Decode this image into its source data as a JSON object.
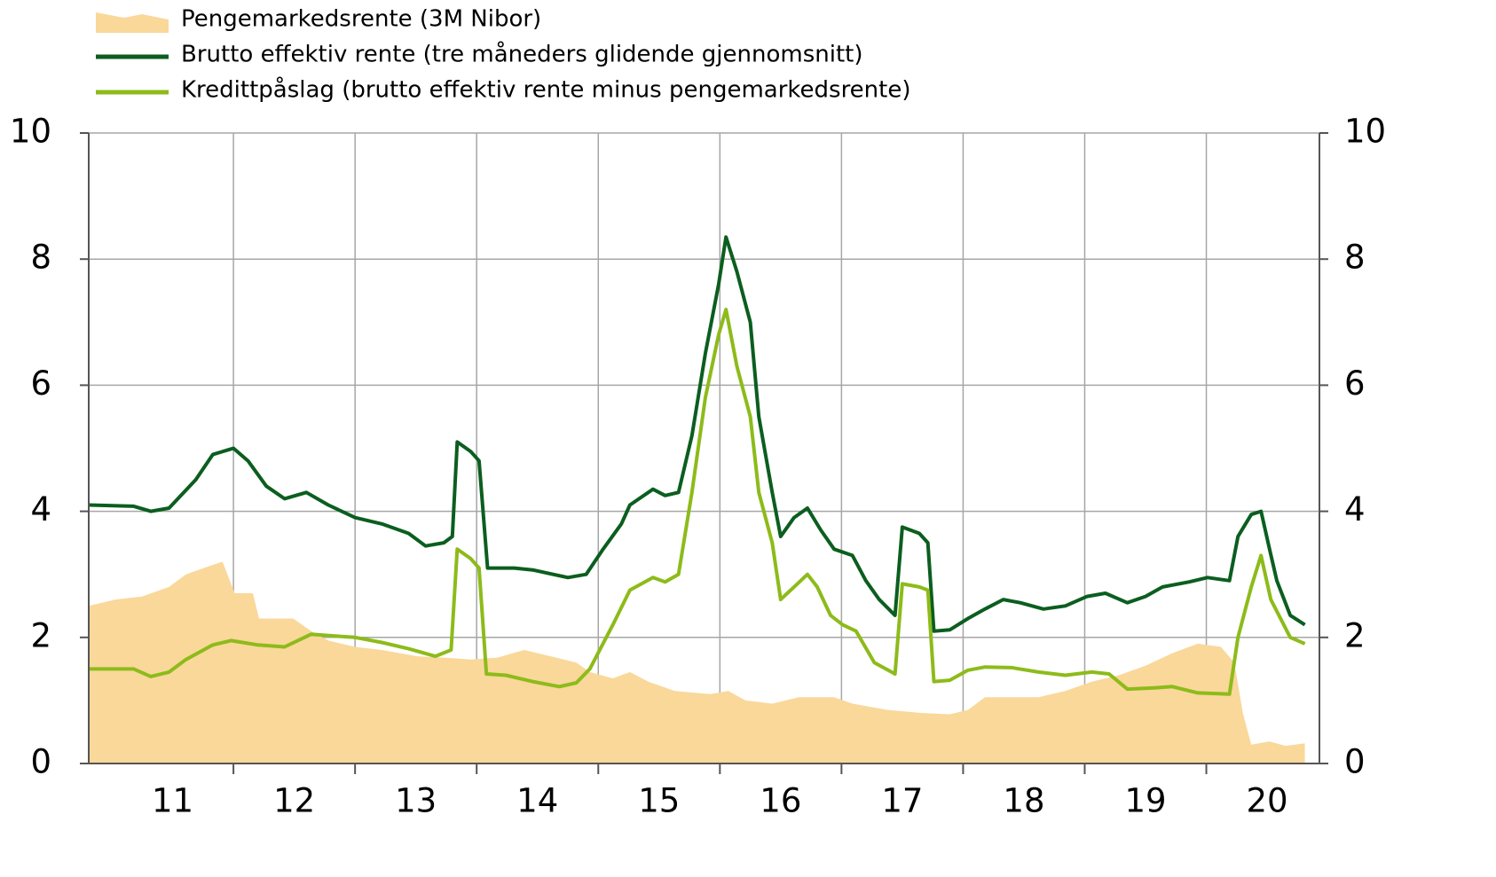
{
  "chart_data": {
    "type": "line",
    "xlim": [
      10.81,
      20.93
    ],
    "xticks": [
      {
        "value": 11.5,
        "label": "11"
      },
      {
        "value": 12.5,
        "label": "12"
      },
      {
        "value": 13.5,
        "label": "13"
      },
      {
        "value": 14.5,
        "label": "14"
      },
      {
        "value": 15.5,
        "label": "15"
      },
      {
        "value": 16.5,
        "label": "16"
      },
      {
        "value": 17.5,
        "label": "17"
      },
      {
        "value": 18.5,
        "label": "18"
      },
      {
        "value": 19.5,
        "label": "19"
      },
      {
        "value": 20.5,
        "label": "20"
      }
    ],
    "ylim": [
      0,
      10
    ],
    "yticks": [
      0,
      2,
      4,
      6,
      8,
      10
    ],
    "y2lim": [
      0,
      10
    ],
    "y2ticks": [
      0,
      2,
      4,
      6,
      8,
      10
    ],
    "grid": true,
    "series": [
      {
        "name": "Pengemarkedsrente (3M Nibor)",
        "kind": "area",
        "color": "#f9d89a",
        "x": [
          10.81,
          11.03,
          11.25,
          11.47,
          11.61,
          11.83,
          11.91,
          12.01,
          12.16,
          12.21,
          12.49,
          12.64,
          12.78,
          13.0,
          13.22,
          13.51,
          13.73,
          13.95,
          14.17,
          14.39,
          14.61,
          14.82,
          14.93,
          15.12,
          15.26,
          15.41,
          15.63,
          15.92,
          16.07,
          16.21,
          16.43,
          16.65,
          16.94,
          17.09,
          17.38,
          17.67,
          17.89,
          18.04,
          18.18,
          18.4,
          18.62,
          18.84,
          19.06,
          19.28,
          19.5,
          19.72,
          19.93,
          20.12,
          20.23,
          20.3,
          20.37,
          20.52,
          20.65,
          20.81
        ],
        "values": [
          2.5,
          2.6,
          2.65,
          2.8,
          3.0,
          3.15,
          3.2,
          2.7,
          2.7,
          2.3,
          2.3,
          2.1,
          1.95,
          1.85,
          1.8,
          1.7,
          1.68,
          1.65,
          1.68,
          1.8,
          1.7,
          1.6,
          1.45,
          1.35,
          1.45,
          1.3,
          1.15,
          1.1,
          1.15,
          1.0,
          0.95,
          1.05,
          1.05,
          0.95,
          0.85,
          0.8,
          0.78,
          0.85,
          1.05,
          1.05,
          1.05,
          1.15,
          1.3,
          1.4,
          1.55,
          1.75,
          1.9,
          1.85,
          1.6,
          0.8,
          0.3,
          0.35,
          0.28,
          0.32
        ]
      },
      {
        "name": "Brutto effektiv rente (tre måneders glidende gjennomsnitt)",
        "kind": "line",
        "color": "#0b5e1f",
        "x": [
          10.81,
          11.18,
          11.32,
          11.47,
          11.69,
          11.83,
          12.0,
          12.12,
          12.27,
          12.42,
          12.6,
          12.78,
          13.0,
          13.22,
          13.44,
          13.58,
          13.73,
          13.8,
          13.84,
          13.95,
          14.02,
          14.09,
          14.31,
          14.46,
          14.75,
          14.9,
          15.04,
          15.19,
          15.26,
          15.45,
          15.55,
          15.66,
          15.77,
          15.88,
          15.99,
          16.05,
          16.14,
          16.25,
          16.32,
          16.43,
          16.5,
          16.61,
          16.72,
          16.83,
          16.94,
          17.09,
          17.2,
          17.31,
          17.44,
          17.5,
          17.64,
          17.71,
          17.76,
          17.89,
          18.04,
          18.18,
          18.33,
          18.47,
          18.66,
          18.84,
          19.02,
          19.17,
          19.35,
          19.5,
          19.64,
          19.86,
          20.01,
          20.19,
          20.26,
          20.37,
          20.45,
          20.52,
          20.58,
          20.69,
          20.81
        ],
        "values": [
          4.1,
          4.08,
          4.0,
          4.05,
          4.5,
          4.9,
          5.0,
          4.8,
          4.4,
          4.2,
          4.3,
          4.1,
          3.9,
          3.8,
          3.65,
          3.45,
          3.5,
          3.6,
          5.1,
          4.95,
          4.8,
          3.1,
          3.1,
          3.07,
          2.95,
          3.0,
          3.4,
          3.8,
          4.1,
          4.35,
          4.25,
          4.3,
          5.2,
          6.5,
          7.6,
          8.35,
          7.8,
          7.0,
          5.5,
          4.3,
          3.6,
          3.9,
          4.05,
          3.7,
          3.4,
          3.3,
          2.9,
          2.6,
          2.35,
          3.75,
          3.65,
          3.5,
          2.1,
          2.12,
          2.3,
          2.45,
          2.6,
          2.55,
          2.45,
          2.5,
          2.65,
          2.7,
          2.55,
          2.65,
          2.8,
          2.88,
          2.95,
          2.9,
          3.6,
          3.95,
          4.0,
          3.4,
          2.9,
          2.35,
          2.2
        ]
      },
      {
        "name": "Kredittpåslag (brutto effektiv rente minus pengemarkedsrente)",
        "kind": "line",
        "color": "#8dbb1a",
        "x": [
          10.81,
          11.18,
          11.32,
          11.47,
          11.61,
          11.83,
          11.98,
          12.2,
          12.42,
          12.64,
          12.85,
          13.0,
          13.22,
          13.44,
          13.66,
          13.79,
          13.84,
          13.95,
          14.02,
          14.08,
          14.24,
          14.46,
          14.68,
          14.82,
          14.93,
          15.12,
          15.26,
          15.45,
          15.55,
          15.66,
          15.77,
          15.88,
          15.99,
          16.05,
          16.14,
          16.25,
          16.32,
          16.43,
          16.5,
          16.61,
          16.72,
          16.8,
          16.91,
          17.01,
          17.12,
          17.27,
          17.44,
          17.5,
          17.64,
          17.71,
          17.76,
          17.89,
          18.04,
          18.18,
          18.4,
          18.62,
          18.84,
          19.06,
          19.2,
          19.35,
          19.57,
          19.72,
          19.93,
          20.19,
          20.26,
          20.37,
          20.45,
          20.53,
          20.69,
          20.81
        ],
        "values": [
          1.5,
          1.5,
          1.38,
          1.45,
          1.65,
          1.88,
          1.95,
          1.88,
          1.85,
          2.05,
          2.02,
          2.0,
          1.92,
          1.82,
          1.7,
          1.8,
          3.4,
          3.25,
          3.1,
          1.42,
          1.4,
          1.3,
          1.22,
          1.28,
          1.5,
          2.2,
          2.75,
          2.95,
          2.88,
          3.0,
          4.3,
          5.8,
          6.8,
          7.2,
          6.3,
          5.5,
          4.3,
          3.5,
          2.6,
          2.8,
          3.0,
          2.8,
          2.35,
          2.2,
          2.1,
          1.6,
          1.42,
          2.85,
          2.8,
          2.75,
          1.3,
          1.32,
          1.48,
          1.53,
          1.52,
          1.45,
          1.4,
          1.45,
          1.42,
          1.18,
          1.2,
          1.22,
          1.12,
          1.1,
          2.0,
          2.8,
          3.3,
          2.6,
          2.0,
          1.9
        ]
      }
    ]
  }
}
